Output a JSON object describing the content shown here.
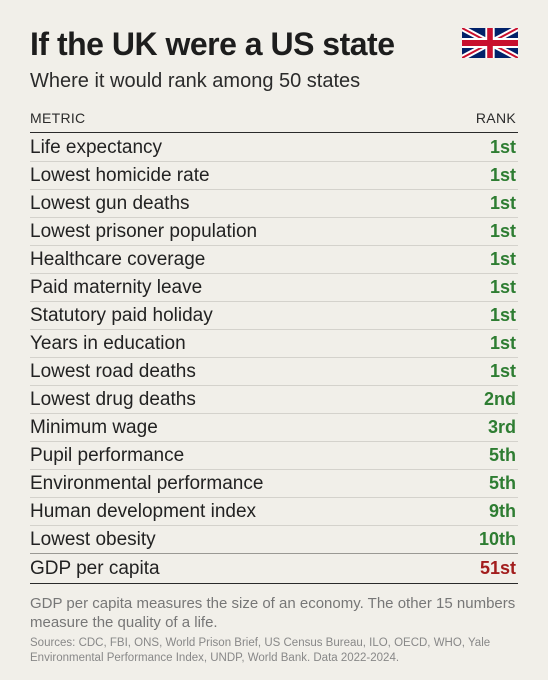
{
  "title": "If the UK were a US state",
  "subtitle": "Where it would rank among 50 states",
  "flag": {
    "icon": "union-jack-flag",
    "colors": {
      "blue": "#012169",
      "red": "#c8102e",
      "white": "#ffffff"
    }
  },
  "chart_data": {
    "type": "table",
    "columns": [
      "METRIC",
      "RANK"
    ],
    "rows": [
      {
        "metric": "Life expectancy",
        "rank": "1st"
      },
      {
        "metric": "Lowest homicide rate",
        "rank": "1st"
      },
      {
        "metric": "Lowest gun deaths",
        "rank": "1st"
      },
      {
        "metric": "Lowest prisoner population",
        "rank": "1st"
      },
      {
        "metric": "Healthcare coverage",
        "rank": "1st"
      },
      {
        "metric": "Paid maternity leave",
        "rank": "1st"
      },
      {
        "metric": "Statutory paid holiday",
        "rank": "1st"
      },
      {
        "metric": "Years in education",
        "rank": "1st"
      },
      {
        "metric": "Lowest road deaths",
        "rank": "1st"
      },
      {
        "metric": "Lowest drug deaths",
        "rank": "2nd"
      },
      {
        "metric": "Minimum wage",
        "rank": "3rd"
      },
      {
        "metric": "Pupil performance",
        "rank": "5th"
      },
      {
        "metric": "Environmental performance",
        "rank": "5th"
      },
      {
        "metric": "Human development index",
        "rank": "9th"
      },
      {
        "metric": "Lowest obesity",
        "rank": "10th"
      },
      {
        "metric": "GDP per capita",
        "rank": "51st"
      }
    ],
    "rank_colors": {
      "good": "#2e7d32",
      "bad": "#a21d1d"
    }
  },
  "note": "GDP per capita measures the size of an economy. The other 15 numbers measure the quality of a life.",
  "sources": "Sources: CDC, FBI, ONS, World Prison Brief, US Census Bureau, ILO, OECD, WHO, Yale Environmental Performance Index, UNDP, World Bank. Data 2022-2024."
}
